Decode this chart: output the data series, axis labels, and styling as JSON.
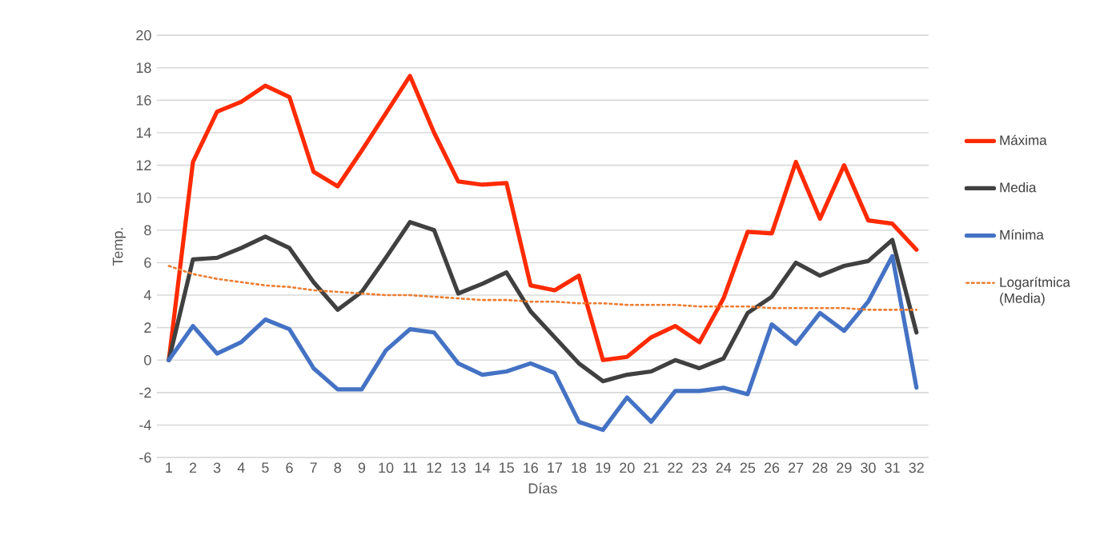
{
  "chart_data": {
    "type": "line",
    "xlabel": "Días",
    "ylabel": "Temp.",
    "categories": [
      "1",
      "2",
      "3",
      "4",
      "5",
      "6",
      "7",
      "8",
      "9",
      "10",
      "11",
      "12",
      "13",
      "14",
      "15",
      "16",
      "17",
      "18",
      "19",
      "20",
      "21",
      "22",
      "23",
      "24",
      "25",
      "26",
      "27",
      "28",
      "29",
      "30",
      "31",
      "32"
    ],
    "series": [
      {
        "name": "Máxima",
        "color": "#ff2a00",
        "values": [
          0,
          12.2,
          15.3,
          15.9,
          16.9,
          16.2,
          11.6,
          10.7,
          12.9,
          15.2,
          17.5,
          14.0,
          11.0,
          10.8,
          10.9,
          4.6,
          4.3,
          5.2,
          0.0,
          0.2,
          1.4,
          2.1,
          1.1,
          3.8,
          7.9,
          7.8,
          12.2,
          8.7,
          12.0,
          8.6,
          8.4,
          6.8
        ]
      },
      {
        "name": "Media",
        "color": "#404040",
        "values": [
          0,
          6.2,
          6.3,
          6.9,
          7.6,
          6.9,
          4.8,
          3.1,
          4.2,
          6.3,
          8.5,
          8.0,
          4.1,
          4.7,
          5.4,
          3.0,
          1.4,
          -0.2,
          -1.3,
          -0.9,
          -0.7,
          0.0,
          -0.5,
          0.1,
          2.9,
          3.9,
          6.0,
          5.2,
          5.8,
          6.1,
          7.4,
          1.7
        ]
      },
      {
        "name": "Mínima",
        "color": "#4472c4",
        "values": [
          0,
          2.1,
          0.4,
          1.1,
          2.5,
          1.9,
          -0.5,
          -1.8,
          -1.8,
          0.6,
          1.9,
          1.7,
          -0.2,
          -0.9,
          -0.7,
          -0.2,
          -0.8,
          -3.8,
          -4.3,
          -2.3,
          -3.8,
          -1.9,
          -1.9,
          -1.7,
          -2.1,
          2.2,
          1.0,
          2.9,
          1.8,
          3.6,
          6.4,
          -1.7
        ]
      },
      {
        "name": "Logarítmica (Media)",
        "color": "#ed7d31",
        "line_style": "dotted",
        "values": [
          5.8,
          5.3,
          5.0,
          4.8,
          4.6,
          4.5,
          4.3,
          4.2,
          4.1,
          4.0,
          4.0,
          3.9,
          3.8,
          3.7,
          3.7,
          3.6,
          3.6,
          3.5,
          3.5,
          3.4,
          3.4,
          3.4,
          3.3,
          3.3,
          3.3,
          3.2,
          3.2,
          3.2,
          3.2,
          3.1,
          3.1,
          3.1
        ]
      }
    ],
    "ylim": [
      -6,
      20
    ],
    "yticks": [
      -6,
      -4,
      -2,
      0,
      2,
      4,
      6,
      8,
      10,
      12,
      14,
      16,
      18,
      20
    ],
    "grid": "y",
    "legend": "right",
    "marker": "none",
    "line_style": "solid"
  }
}
